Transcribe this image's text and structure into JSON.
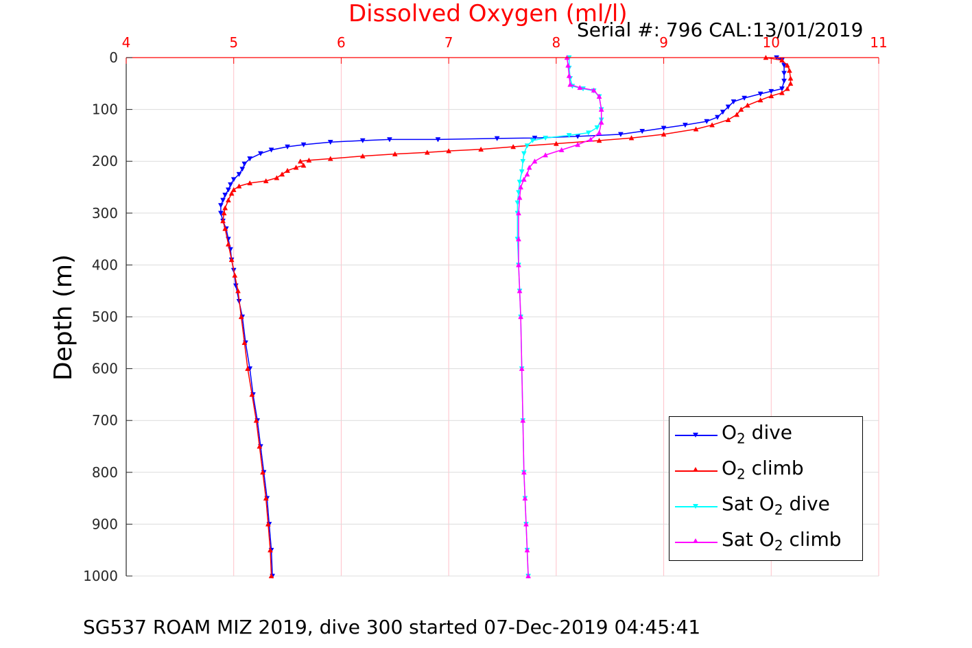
{
  "chart_data": {
    "type": "line",
    "title": "Dissolved Oxygen (ml/l)",
    "subtitle": "Serial #: 796  CAL:13/01/2019",
    "caption": "SG537 ROAM MIZ 2019, dive 300 started 07-Dec-2019 04:45:41",
    "xlabel": "Dissolved Oxygen (ml/l)",
    "ylabel": "Depth (m)",
    "xlim": [
      4,
      11
    ],
    "ylim": [
      0,
      1000
    ],
    "y_reversed": true,
    "x_axis_position": "top",
    "xticks": [
      "4",
      "5",
      "6",
      "7",
      "8",
      "9",
      "10",
      "11"
    ],
    "yticks": [
      "0",
      "100",
      "200",
      "300",
      "400",
      "500",
      "600",
      "700",
      "800",
      "900",
      "1000"
    ],
    "grid": true,
    "legend_position": "bottom-right",
    "colors": {
      "title": "#ff0000",
      "x_ticks": "#ff0000",
      "grid": "#ffc0c8"
    },
    "series": [
      {
        "name": "O2 dive",
        "legend_main": "O",
        "legend_sub": "2",
        "legend_rest": " dive",
        "color": "#0000ff",
        "marker": "triangle-down",
        "points": [
          [
            10.05,
            0
          ],
          [
            10.1,
            5
          ],
          [
            10.12,
            15
          ],
          [
            10.12,
            30
          ],
          [
            10.12,
            45
          ],
          [
            10.1,
            60
          ],
          [
            10.0,
            65
          ],
          [
            9.9,
            70
          ],
          [
            9.75,
            78
          ],
          [
            9.65,
            85
          ],
          [
            9.6,
            95
          ],
          [
            9.55,
            105
          ],
          [
            9.5,
            115
          ],
          [
            9.4,
            123
          ],
          [
            9.2,
            130
          ],
          [
            9.0,
            136
          ],
          [
            8.8,
            142
          ],
          [
            8.6,
            148
          ],
          [
            8.2,
            152
          ],
          [
            7.8,
            155
          ],
          [
            7.45,
            156
          ],
          [
            6.9,
            158
          ],
          [
            6.45,
            158
          ],
          [
            6.2,
            160
          ],
          [
            5.9,
            163
          ],
          [
            5.65,
            168
          ],
          [
            5.5,
            172
          ],
          [
            5.35,
            178
          ],
          [
            5.25,
            185
          ],
          [
            5.15,
            195
          ],
          [
            5.1,
            205
          ],
          [
            5.08,
            215
          ],
          [
            5.05,
            225
          ],
          [
            5.0,
            235
          ],
          [
            4.97,
            245
          ],
          [
            4.95,
            255
          ],
          [
            4.92,
            265
          ],
          [
            4.9,
            275
          ],
          [
            4.88,
            285
          ],
          [
            4.88,
            300
          ],
          [
            4.9,
            315
          ],
          [
            4.93,
            330
          ],
          [
            4.95,
            350
          ],
          [
            4.97,
            370
          ],
          [
            4.98,
            390
          ],
          [
            5.0,
            410
          ],
          [
            5.02,
            440
          ],
          [
            5.05,
            470
          ],
          [
            5.08,
            500
          ],
          [
            5.11,
            550
          ],
          [
            5.15,
            600
          ],
          [
            5.18,
            650
          ],
          [
            5.22,
            700
          ],
          [
            5.25,
            750
          ],
          [
            5.28,
            800
          ],
          [
            5.31,
            850
          ],
          [
            5.33,
            900
          ],
          [
            5.35,
            950
          ],
          [
            5.36,
            1000
          ]
        ]
      },
      {
        "name": "O2 climb",
        "legend_main": "O",
        "legend_sub": "2",
        "legend_rest": " climb",
        "color": "#ff0000",
        "marker": "triangle-up",
        "points": [
          [
            5.35,
            1000
          ],
          [
            5.34,
            950
          ],
          [
            5.32,
            900
          ],
          [
            5.3,
            850
          ],
          [
            5.27,
            800
          ],
          [
            5.24,
            750
          ],
          [
            5.21,
            700
          ],
          [
            5.17,
            650
          ],
          [
            5.13,
            600
          ],
          [
            5.1,
            550
          ],
          [
            5.07,
            500
          ],
          [
            5.04,
            450
          ],
          [
            5.01,
            420
          ],
          [
            4.98,
            390
          ],
          [
            4.95,
            360
          ],
          [
            4.92,
            330
          ],
          [
            4.9,
            315
          ],
          [
            4.91,
            300
          ],
          [
            4.92,
            290
          ],
          [
            4.95,
            275
          ],
          [
            4.98,
            262
          ],
          [
            5.0,
            255
          ],
          [
            5.05,
            248
          ],
          [
            5.15,
            242
          ],
          [
            5.3,
            238
          ],
          [
            5.4,
            232
          ],
          [
            5.45,
            225
          ],
          [
            5.5,
            218
          ],
          [
            5.58,
            212
          ],
          [
            5.65,
            208
          ],
          [
            5.62,
            200
          ],
          [
            5.7,
            198
          ],
          [
            5.9,
            195
          ],
          [
            6.2,
            190
          ],
          [
            6.5,
            186
          ],
          [
            6.8,
            183
          ],
          [
            7.0,
            180
          ],
          [
            7.3,
            177
          ],
          [
            7.6,
            172
          ],
          [
            8.0,
            166
          ],
          [
            8.4,
            160
          ],
          [
            8.7,
            155
          ],
          [
            9.0,
            148
          ],
          [
            9.3,
            138
          ],
          [
            9.45,
            130
          ],
          [
            9.6,
            120
          ],
          [
            9.68,
            110
          ],
          [
            9.72,
            100
          ],
          [
            9.78,
            92
          ],
          [
            9.9,
            82
          ],
          [
            10.0,
            74
          ],
          [
            10.1,
            68
          ],
          [
            10.15,
            60
          ],
          [
            10.18,
            50
          ],
          [
            10.18,
            40
          ],
          [
            10.17,
            25
          ],
          [
            10.15,
            15
          ],
          [
            10.1,
            5
          ],
          [
            9.95,
            0
          ]
        ]
      },
      {
        "name": "Sat O2 dive",
        "legend_main": "Sat O",
        "legend_sub": "2",
        "legend_rest": " dive",
        "color": "#00ffff",
        "marker": "triangle-down",
        "points": [
          [
            8.12,
            0
          ],
          [
            8.12,
            20
          ],
          [
            8.13,
            40
          ],
          [
            8.15,
            55
          ],
          [
            8.25,
            60
          ],
          [
            8.35,
            64
          ],
          [
            8.4,
            75
          ],
          [
            8.42,
            100
          ],
          [
            8.42,
            120
          ],
          [
            8.38,
            135
          ],
          [
            8.3,
            145
          ],
          [
            8.12,
            150
          ],
          [
            7.9,
            155
          ],
          [
            7.78,
            160
          ],
          [
            7.73,
            170
          ],
          [
            7.7,
            185
          ],
          [
            7.69,
            200
          ],
          [
            7.68,
            220
          ],
          [
            7.66,
            240
          ],
          [
            7.65,
            260
          ],
          [
            7.64,
            280
          ],
          [
            7.64,
            300
          ],
          [
            7.64,
            350
          ],
          [
            7.65,
            400
          ],
          [
            7.66,
            450
          ],
          [
            7.67,
            500
          ],
          [
            7.68,
            600
          ],
          [
            7.69,
            700
          ],
          [
            7.7,
            800
          ],
          [
            7.71,
            850
          ],
          [
            7.72,
            900
          ],
          [
            7.73,
            950
          ],
          [
            7.74,
            1000
          ]
        ]
      },
      {
        "name": "Sat O2 climb",
        "legend_main": "Sat O",
        "legend_sub": "2",
        "legend_rest": " climb",
        "color": "#ff00ff",
        "marker": "triangle-up",
        "points": [
          [
            7.74,
            1000
          ],
          [
            7.73,
            950
          ],
          [
            7.72,
            900
          ],
          [
            7.71,
            850
          ],
          [
            7.7,
            800
          ],
          [
            7.69,
            700
          ],
          [
            7.68,
            600
          ],
          [
            7.67,
            500
          ],
          [
            7.66,
            450
          ],
          [
            7.65,
            400
          ],
          [
            7.65,
            350
          ],
          [
            7.65,
            300
          ],
          [
            7.66,
            270
          ],
          [
            7.67,
            250
          ],
          [
            7.7,
            235
          ],
          [
            7.73,
            225
          ],
          [
            7.75,
            212
          ],
          [
            7.8,
            200
          ],
          [
            7.9,
            188
          ],
          [
            8.05,
            178
          ],
          [
            8.2,
            168
          ],
          [
            8.32,
            158
          ],
          [
            8.4,
            145
          ],
          [
            8.42,
            125
          ],
          [
            8.42,
            100
          ],
          [
            8.4,
            75
          ],
          [
            8.35,
            63
          ],
          [
            8.22,
            58
          ],
          [
            8.13,
            52
          ],
          [
            8.12,
            35
          ],
          [
            8.11,
            15
          ],
          [
            8.1,
            0
          ]
        ]
      }
    ]
  }
}
